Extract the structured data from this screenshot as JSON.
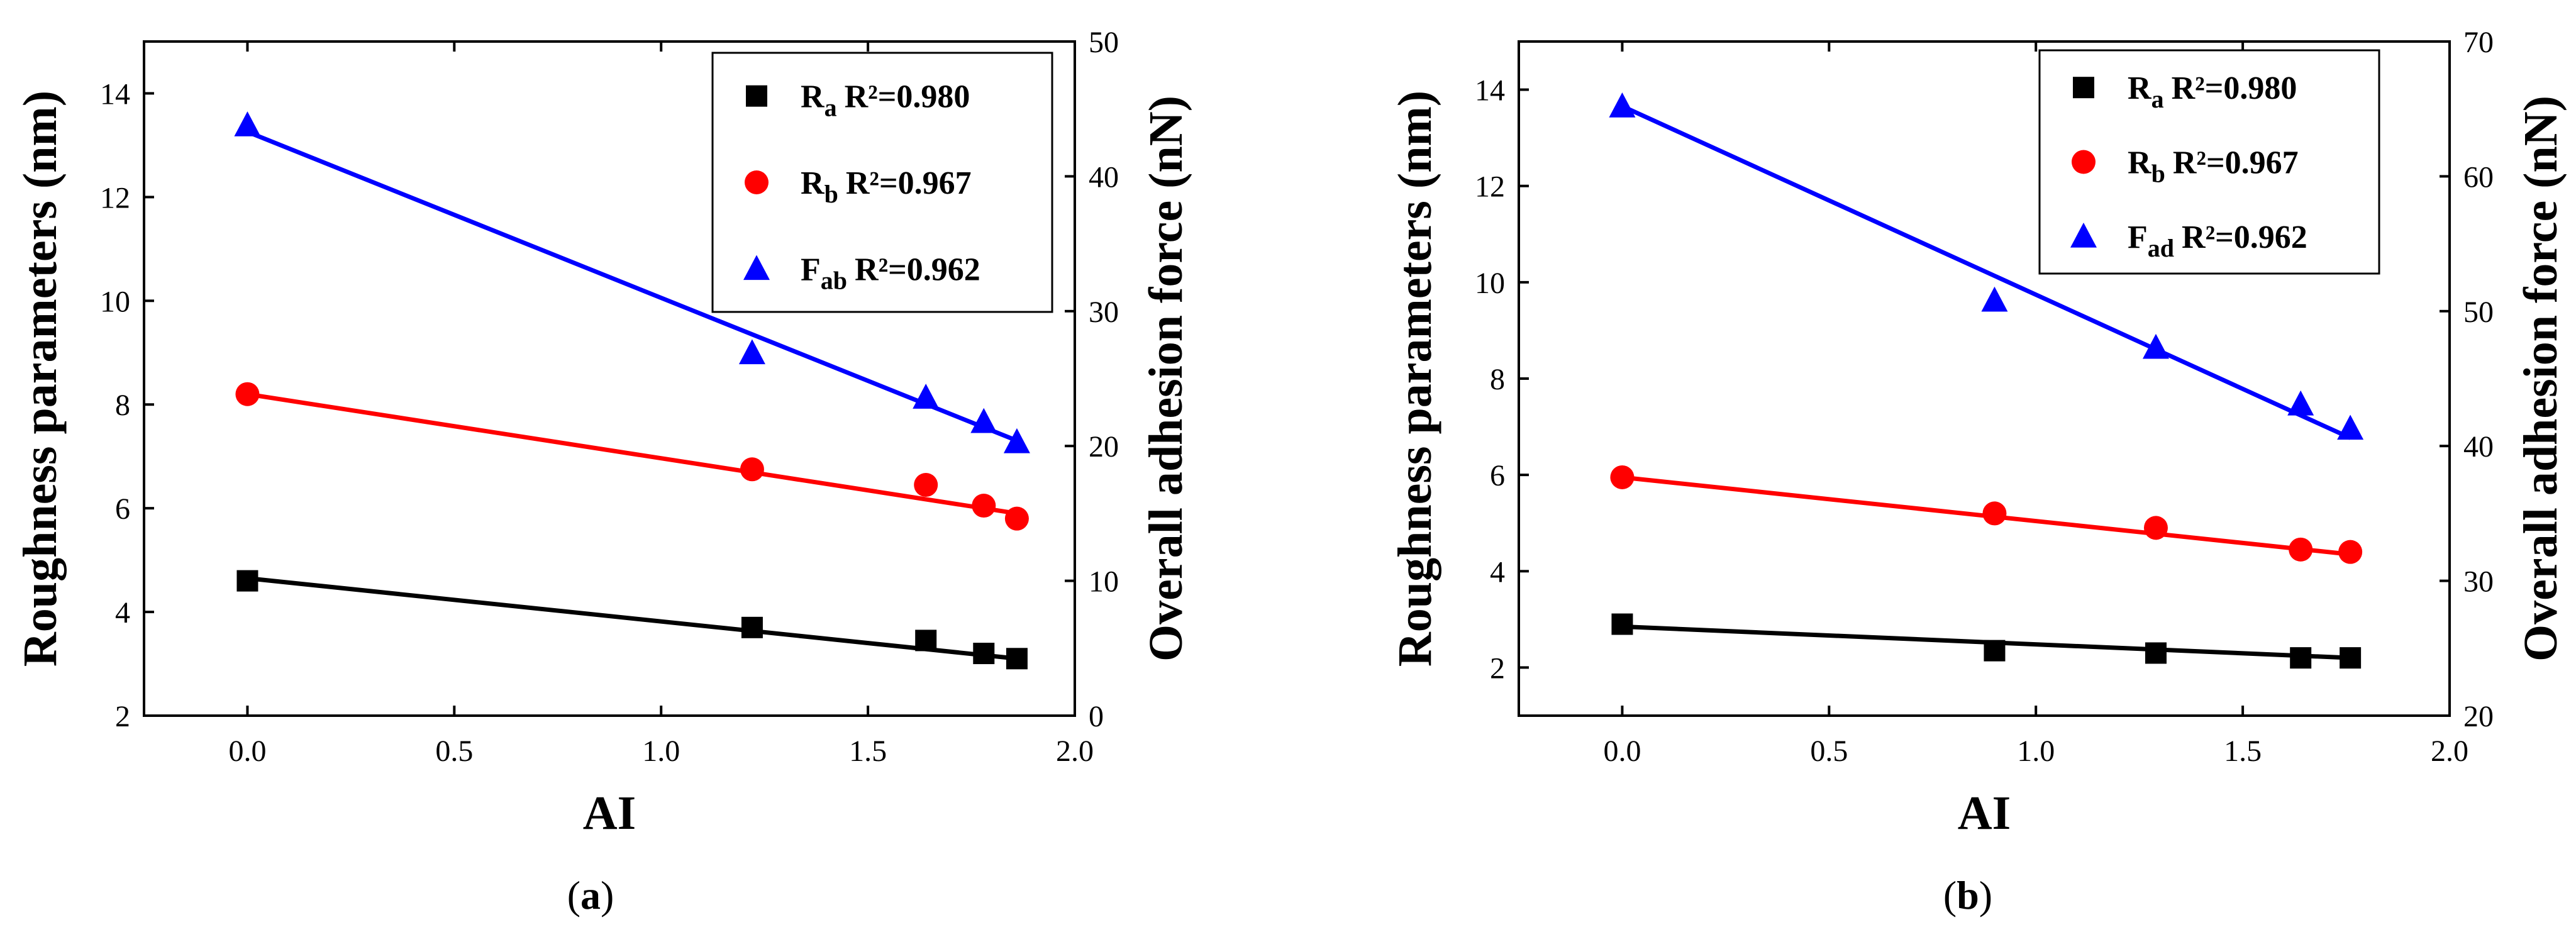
{
  "chart_data": [
    {
      "type": "scatter",
      "panel": "a",
      "caption_label": "a",
      "xlabel": "AI",
      "ylabel": "Roughness parameters (nm)",
      "y2label": "Overall adhesion force (nN)",
      "xlim": [
        -0.25,
        2.0
      ],
      "ylim": [
        2,
        15
      ],
      "y2lim": [
        0,
        50
      ],
      "xticks": [
        0.0,
        0.5,
        1.0,
        1.5,
        2.0
      ],
      "xtick_labels": [
        "0.0",
        "0.5",
        "1.0",
        "1.5",
        "2.0"
      ],
      "yticks": [
        2,
        4,
        6,
        8,
        10,
        12,
        14
      ],
      "ytick_labels": [
        "2",
        "4",
        "6",
        "8",
        "10",
        "12",
        "14"
      ],
      "y2ticks": [
        0,
        10,
        20,
        30,
        40,
        50
      ],
      "y2tick_labels": [
        "0",
        "10",
        "20",
        "30",
        "40",
        "50"
      ],
      "series": [
        {
          "name": "R",
          "sub": "a",
          "r2": "R²=0.980",
          "marker": "square",
          "color": "#000000",
          "axis": "left",
          "x": [
            0.0,
            1.22,
            1.64,
            1.78,
            1.86
          ],
          "y": [
            4.6,
            3.7,
            3.45,
            3.2,
            3.1
          ],
          "fit": [
            4.65,
            3.1
          ]
        },
        {
          "name": "R",
          "sub": "b",
          "r2": "R²=0.967",
          "marker": "circle",
          "color": "#ff0000",
          "axis": "left",
          "x": [
            0.0,
            1.22,
            1.64,
            1.78,
            1.86
          ],
          "y": [
            8.2,
            6.75,
            6.45,
            6.05,
            5.8
          ],
          "fit": [
            8.2,
            5.9
          ]
        },
        {
          "name": "F",
          "sub": "ab",
          "r2": "R²=0.962",
          "marker": "triangle",
          "color": "#0000ff",
          "axis": "right",
          "x": [
            0.0,
            1.22,
            1.64,
            1.78,
            1.86
          ],
          "y": [
            43.8,
            26.9,
            23.6,
            21.8,
            20.3
          ],
          "fit": [
            43.3,
            20.4
          ]
        }
      ]
    },
    {
      "type": "scatter",
      "panel": "b",
      "caption_label": "b",
      "xlabel": "AI",
      "ylabel": "Roughness parameters (nm)",
      "y2label": "Overall adhesion force (nN)",
      "xlim": [
        -0.25,
        2.0
      ],
      "ylim": [
        1,
        15
      ],
      "y2lim": [
        20,
        70
      ],
      "xticks": [
        0.0,
        0.5,
        1.0,
        1.5,
        2.0
      ],
      "xtick_labels": [
        "0.0",
        "0.5",
        "1.0",
        "1.5",
        "2.0"
      ],
      "yticks": [
        2,
        4,
        6,
        8,
        10,
        12,
        14
      ],
      "ytick_labels": [
        "2",
        "4",
        "6",
        "8",
        "10",
        "12",
        "14"
      ],
      "y2ticks": [
        20,
        30,
        40,
        50,
        60,
        70
      ],
      "y2tick_labels": [
        "20",
        "30",
        "40",
        "50",
        "60",
        "70"
      ],
      "series": [
        {
          "name": "R",
          "sub": "a",
          "r2": "R²=0.980",
          "marker": "square",
          "color": "#000000",
          "axis": "left",
          "x": [
            0.0,
            0.9,
            1.29,
            1.64,
            1.76
          ],
          "y": [
            2.9,
            2.35,
            2.3,
            2.2,
            2.2
          ],
          "fit": [
            2.85,
            2.2
          ]
        },
        {
          "name": "R",
          "sub": "b",
          "r2": "R²=0.967",
          "marker": "circle",
          "color": "#ff0000",
          "axis": "left",
          "x": [
            0.0,
            0.9,
            1.29,
            1.64,
            1.76
          ],
          "y": [
            5.95,
            5.2,
            4.9,
            4.45,
            4.4
          ],
          "fit": [
            5.95,
            4.35
          ]
        },
        {
          "name": "F",
          "sub": "ad",
          "r2": "R²=0.962",
          "marker": "triangle",
          "color": "#0000ff",
          "axis": "right",
          "x": [
            0.0,
            0.9,
            1.29,
            1.64,
            1.76
          ],
          "y": [
            65.2,
            50.8,
            47.3,
            43.1,
            41.3
          ],
          "fit": [
            65.2,
            40.6
          ]
        }
      ]
    }
  ]
}
